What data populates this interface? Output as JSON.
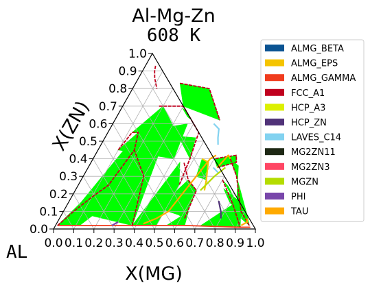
{
  "chart_data": {
    "type": "ternary",
    "title": "Al-Mg-Zn",
    "subtitle": "608 K",
    "xlabel": "X(MG)",
    "ylabel": "X(ZN)",
    "corner_label": "AL",
    "xlim": [
      0,
      1
    ],
    "ylim": [
      0,
      1
    ],
    "x_ticks": [
      "0.0",
      "0.1",
      "0.2",
      "0.3",
      "0.4",
      "0.5",
      "0.6",
      "0.7",
      "0.8",
      "0.9",
      "1.0"
    ],
    "y_ticks": [
      "0.0",
      "0.1",
      "0.2",
      "0.3",
      "0.4",
      "0.5",
      "0.6",
      "0.7",
      "0.8",
      "0.9",
      "1.0"
    ],
    "grid": true,
    "legend_position": "right",
    "legend": [
      {
        "name": "ALMG_BETA",
        "color": "#0a5392"
      },
      {
        "name": "ALMG_EPS",
        "color": "#f5c400"
      },
      {
        "name": "ALMG_GAMMA",
        "color": "#f03c1e"
      },
      {
        "name": "FCC_A1",
        "color": "#c0001e"
      },
      {
        "name": "HCP_A3",
        "color": "#dcf000"
      },
      {
        "name": "HCP_ZN",
        "color": "#503278"
      },
      {
        "name": "LAVES_C14",
        "color": "#82d2f0"
      },
      {
        "name": "MG2ZN11",
        "color": "#1e2814"
      },
      {
        "name": "MG2ZN3",
        "color": "#ff4664"
      },
      {
        "name": "MGZN",
        "color": "#b4dc00"
      },
      {
        "name": "PHI",
        "color": "#7846aa"
      },
      {
        "name": "TAU",
        "color": "#ffaa00"
      }
    ],
    "tie_line_color": "#00ff00",
    "fill_regions": [
      [
        [
          0.01,
          0.02
        ],
        [
          0.12,
          0.02
        ],
        [
          0.3,
          0.3
        ],
        [
          0.18,
          0.45
        ]
      ],
      [
        [
          0.05,
          0.1
        ],
        [
          0.38,
          0.02
        ],
        [
          0.3,
          0.5
        ],
        [
          0.15,
          0.55
        ]
      ],
      [
        [
          0.1,
          0.45
        ],
        [
          0.4,
          0.4
        ],
        [
          0.37,
          0.6
        ],
        [
          0.15,
          0.55
        ]
      ],
      [
        [
          0.12,
          0.55
        ],
        [
          0.45,
          0.52
        ],
        [
          0.48,
          0.4
        ],
        [
          0.2,
          0.7
        ]
      ],
      [
        [
          0.3,
          0.7
        ],
        [
          0.52,
          0.62
        ],
        [
          0.38,
          0.8
        ],
        [
          0.22,
          0.83
        ]
      ],
      [
        [
          0.38,
          0.02
        ],
        [
          0.5,
          0.02
        ],
        [
          0.5,
          0.25
        ],
        [
          0.44,
          0.38
        ]
      ],
      [
        [
          0.46,
          0.12
        ],
        [
          0.58,
          0.08
        ],
        [
          0.62,
          0.06
        ],
        [
          0.6,
          0.22
        ],
        [
          0.53,
          0.28
        ]
      ],
      [
        [
          0.55,
          0.02
        ],
        [
          0.64,
          0.02
        ],
        [
          0.62,
          0.1
        ]
      ],
      [
        [
          0.64,
          0.35
        ],
        [
          0.72,
          0.38
        ],
        [
          0.7,
          0.42
        ],
        [
          0.6,
          0.4
        ]
      ],
      [
        [
          0.72,
          0.02
        ],
        [
          0.92,
          0.01
        ],
        [
          0.88,
          0.1
        ],
        [
          0.82,
          0.14
        ]
      ],
      [
        [
          0.7,
          0.28
        ],
        [
          0.8,
          0.18
        ],
        [
          0.9,
          0.1
        ],
        [
          0.93,
          0.04
        ],
        [
          0.75,
          0.24
        ]
      ],
      [
        [
          0.73,
          0.23
        ],
        [
          0.8,
          0.15
        ],
        [
          0.9,
          0.08
        ],
        [
          0.84,
          0.16
        ]
      ],
      [
        [
          0.68,
          0.4
        ],
        [
          0.74,
          0.36
        ],
        [
          0.82,
          0.18
        ],
        [
          0.9,
          0.06
        ],
        [
          0.96,
          0.02
        ],
        [
          0.92,
          0.08
        ],
        [
          0.76,
          0.3
        ]
      ],
      [
        [
          0.3,
          0.69
        ],
        [
          0.35,
          0.64
        ],
        [
          0.38,
          0.62
        ],
        [
          0.33,
          0.67
        ]
      ],
      [
        [
          0.54,
          0.4
        ],
        [
          0.58,
          0.38
        ],
        [
          0.62,
          0.28
        ],
        [
          0.56,
          0.3
        ]
      ]
    ],
    "boundary_lines": [
      {
        "phase": "ALMG_GAMMA",
        "points": [
          [
            0.01,
            0.02
          ],
          [
            0.12,
            0.02
          ],
          [
            0.3,
            0.02
          ],
          [
            0.38,
            0.02
          ],
          [
            0.5,
            0.02
          ],
          [
            0.64,
            0.02
          ],
          [
            0.92,
            0.01
          ],
          [
            0.97,
            0.01
          ]
        ]
      },
      {
        "phase": "FCC_A1",
        "points": [
          [
            0.01,
            0.02
          ],
          [
            0.05,
            0.1
          ],
          [
            0.1,
            0.18
          ],
          [
            0.15,
            0.25
          ],
          [
            0.18,
            0.45
          ],
          [
            0.15,
            0.55
          ],
          [
            0.12,
            0.55
          ],
          [
            0.1,
            0.45
          ]
        ]
      },
      {
        "phase": "FCC_A1",
        "points": [
          [
            0.38,
            0.02
          ],
          [
            0.3,
            0.3
          ],
          [
            0.18,
            0.45
          ]
        ]
      },
      {
        "phase": "FCC_A1",
        "points": [
          [
            0.18,
            0.7
          ],
          [
            0.3,
            0.7
          ],
          [
            0.45,
            0.55
          ],
          [
            0.48,
            0.4
          ],
          [
            0.5,
            0.25
          ]
        ]
      },
      {
        "phase": "FCC_A1",
        "points": [
          [
            0.22,
            0.83
          ],
          [
            0.38,
            0.8
          ],
          [
            0.52,
            0.62
          ]
        ]
      },
      {
        "phase": "FCC_A1",
        "points": [
          [
            0.05,
            0.93
          ],
          [
            0.06,
            0.9
          ],
          [
            0.08,
            0.86
          ],
          [
            0.12,
            0.8
          ]
        ]
      },
      {
        "phase": "FCC_A1",
        "points": [
          [
            0.62,
            0.06
          ],
          [
            0.6,
            0.22
          ],
          [
            0.53,
            0.28
          ],
          [
            0.46,
            0.38
          ]
        ]
      },
      {
        "phase": "FCC_A1",
        "points": [
          [
            0.64,
            0.35
          ],
          [
            0.72,
            0.38
          ],
          [
            0.7,
            0.42
          ],
          [
            0.6,
            0.4
          ]
        ]
      },
      {
        "phase": "FCC_A1",
        "points": [
          [
            0.7,
            0.28
          ],
          [
            0.82,
            0.14
          ],
          [
            0.92,
            0.01
          ]
        ]
      },
      {
        "phase": "FCC_A1",
        "points": [
          [
            0.68,
            0.4
          ],
          [
            0.76,
            0.3
          ],
          [
            0.88,
            0.1
          ],
          [
            0.96,
            0.02
          ]
        ]
      },
      {
        "phase": "ALMG_EPS",
        "points": [
          [
            0.54,
            0.4
          ],
          [
            0.58,
            0.38
          ],
          [
            0.62,
            0.28
          ],
          [
            0.64,
            0.22
          ]
        ]
      },
      {
        "phase": "TAU",
        "points": [
          [
            0.43,
            0.03
          ],
          [
            0.48,
            0.06
          ],
          [
            0.52,
            0.1
          ],
          [
            0.55,
            0.25
          ],
          [
            0.58,
            0.4
          ],
          [
            0.6,
            0.42
          ]
        ]
      },
      {
        "phase": "TAU",
        "points": [
          [
            0.64,
            0.35
          ],
          [
            0.66,
            0.42
          ],
          [
            0.68,
            0.4
          ]
        ]
      },
      {
        "phase": "TAU",
        "points": [
          [
            0.92,
            0.02
          ],
          [
            0.94,
            0.04
          ],
          [
            0.93,
            0.06
          ]
        ]
      },
      {
        "phase": "LAVES_C14",
        "points": [
          [
            0.5,
            0.6
          ],
          [
            0.54,
            0.57
          ],
          [
            0.56,
            0.52
          ],
          [
            0.58,
            0.48
          ]
        ]
      },
      {
        "phase": "LAVES_C14",
        "points": [
          [
            0.62,
            0.35
          ],
          [
            0.66,
            0.32
          ]
        ]
      },
      {
        "phase": "MGZN",
        "points": [
          [
            0.62,
            0.22
          ],
          [
            0.65,
            0.3
          ],
          [
            0.68,
            0.35
          ]
        ]
      },
      {
        "phase": "HCP_ZN",
        "points": [
          [
            0.74,
            0.16
          ],
          [
            0.78,
            0.1
          ],
          [
            0.8,
            0.06
          ]
        ]
      },
      {
        "phase": "PHI",
        "points": [
          [
            0.28,
            0.02
          ],
          [
            0.3,
            0.04
          ]
        ]
      }
    ]
  }
}
